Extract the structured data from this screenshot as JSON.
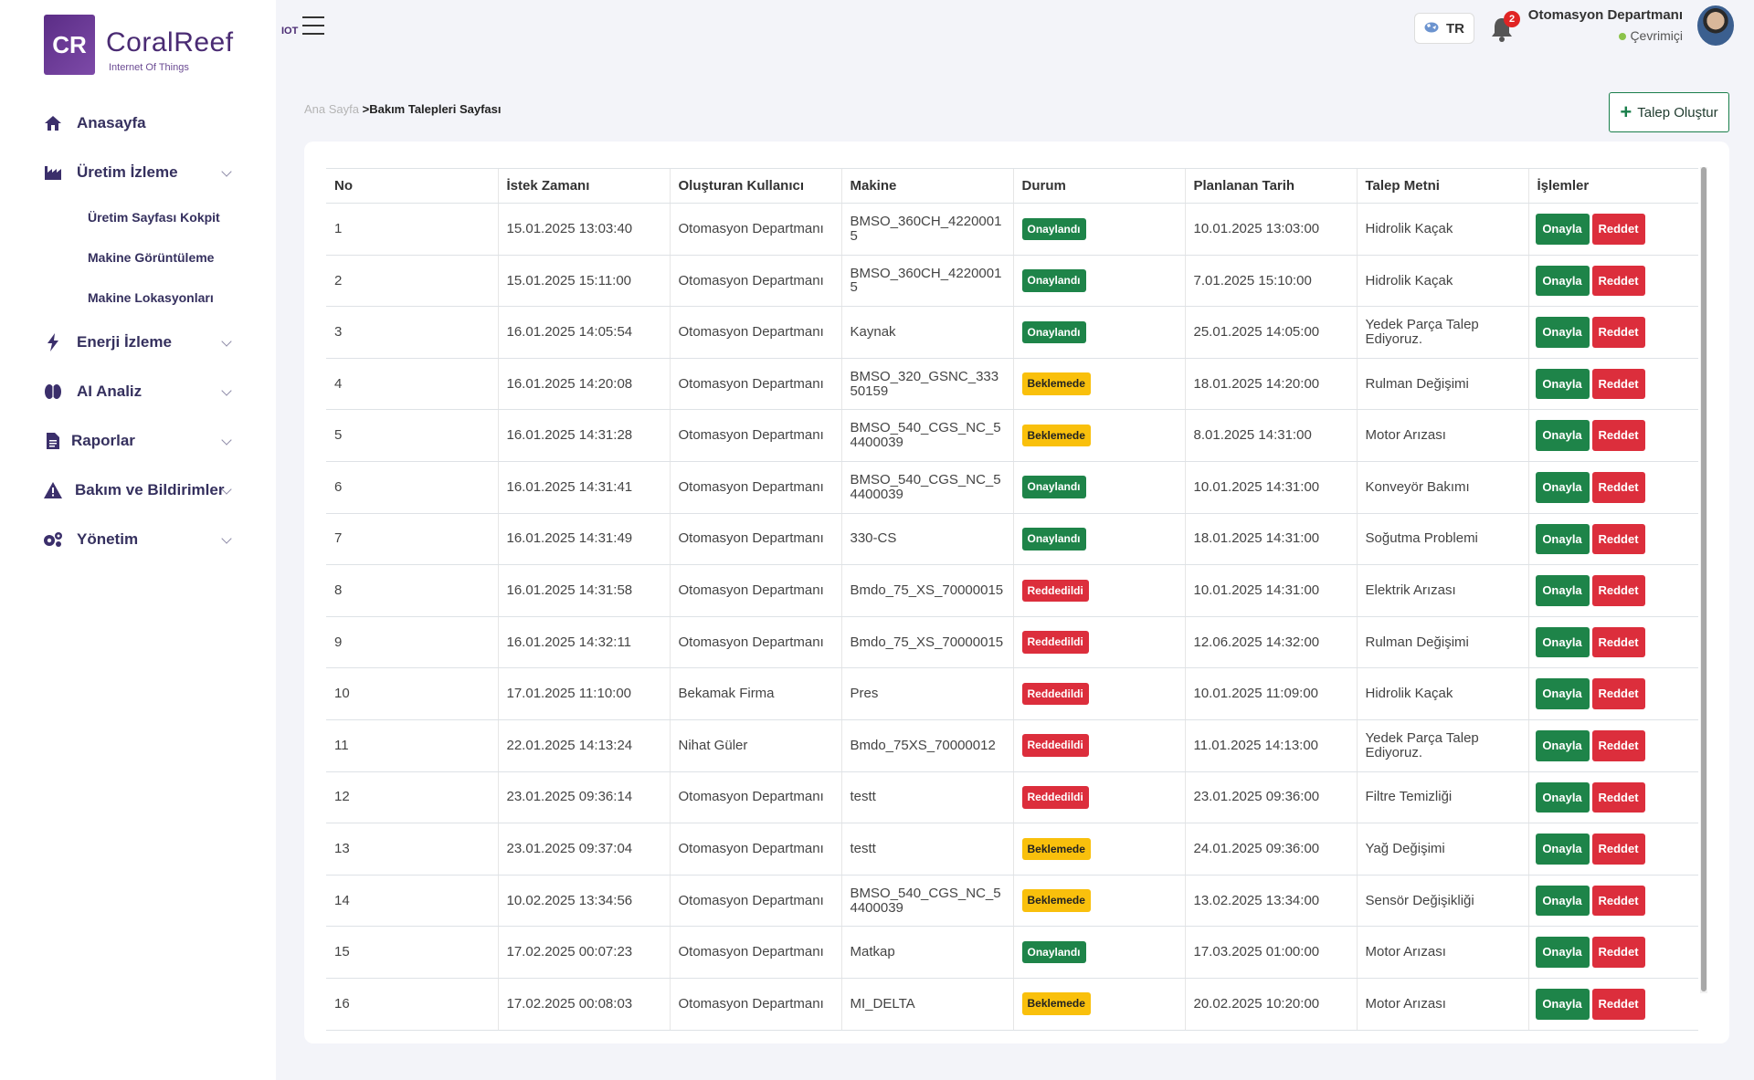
{
  "sidebar": {
    "logo_mark": "CR",
    "logo_name": "CoralReef",
    "logo_tag": "IOT",
    "logo_subtitle": "Internet Of Things",
    "nav": [
      {
        "key": "home",
        "label": "Anasayfa",
        "icon": "home-icon",
        "has_children": false
      },
      {
        "key": "production",
        "label": "Üretim İzleme",
        "icon": "factory-icon",
        "has_children": true,
        "children": [
          "Üretim Sayfası Kokpit",
          "Makine Görüntüleme",
          "Makine Lokasyonları"
        ]
      },
      {
        "key": "energy",
        "label": "Enerji İzleme",
        "icon": "bolt-icon",
        "has_children": true
      },
      {
        "key": "ai",
        "label": "AI Analiz",
        "icon": "brain-icon",
        "has_children": true
      },
      {
        "key": "reports",
        "label": "Raporlar",
        "icon": "document-icon",
        "has_children": true
      },
      {
        "key": "maintenance",
        "label": "Bakım ve Bildirimler",
        "icon": "warning-icon",
        "has_children": true
      },
      {
        "key": "admin",
        "label": "Yönetim",
        "icon": "gears-icon",
        "has_children": true
      }
    ]
  },
  "header": {
    "language": "TR",
    "notification_count": "2",
    "user_name": "Otomasyon Departmanı",
    "user_status": "Çevrimiçi"
  },
  "breadcrumb": {
    "home": "Ana Sayfa",
    "separator": ">",
    "current": "Bakım Talepleri Sayfası"
  },
  "create_button": "Talep Oluştur",
  "table": {
    "columns": [
      "No",
      "İstek Zamanı",
      "Oluşturan Kullanıcı",
      "Makine",
      "Durum",
      "Planlanan Tarih",
      "Talep Metni",
      "İşlemler"
    ],
    "approve_label": "Onayla",
    "reject_label": "Reddet",
    "rows": [
      {
        "no": "1",
        "time": "15.01.2025 13:03:40",
        "user": "Otomasyon Departmanı",
        "machine": "BMSO_360CH_42200015",
        "status": "Onaylandı",
        "status_type": "onay",
        "planned": "10.01.2025 13:03:00",
        "text": "Hidrolik Kaçak"
      },
      {
        "no": "2",
        "time": "15.01.2025 15:11:00",
        "user": "Otomasyon Departmanı",
        "machine": "BMSO_360CH_42200015",
        "status": "Onaylandı",
        "status_type": "onay",
        "planned": "7.01.2025 15:10:00",
        "text": "Hidrolik Kaçak"
      },
      {
        "no": "3",
        "time": "16.01.2025 14:05:54",
        "user": "Otomasyon Departmanı",
        "machine": "Kaynak",
        "status": "Onaylandı",
        "status_type": "onay",
        "planned": "25.01.2025 14:05:00",
        "text": "Yedek Parça Talep Ediyoruz."
      },
      {
        "no": "4",
        "time": "16.01.2025 14:20:08",
        "user": "Otomasyon Departmanı",
        "machine": "BMSO_320_GSNC_33350159",
        "status": "Beklemede",
        "status_type": "bek",
        "planned": "18.01.2025 14:20:00",
        "text": "Rulman Değişimi"
      },
      {
        "no": "5",
        "time": "16.01.2025 14:31:28",
        "user": "Otomasyon Departmanı",
        "machine": "BMSO_540_CGS_NC_54400039",
        "status": "Beklemede",
        "status_type": "bek",
        "planned": "8.01.2025 14:31:00",
        "text": "Motor Arızası"
      },
      {
        "no": "6",
        "time": "16.01.2025 14:31:41",
        "user": "Otomasyon Departmanı",
        "machine": "BMSO_540_CGS_NC_54400039",
        "status": "Onaylandı",
        "status_type": "onay",
        "planned": "10.01.2025 14:31:00",
        "text": "Konveyör Bakımı"
      },
      {
        "no": "7",
        "time": "16.01.2025 14:31:49",
        "user": "Otomasyon Departmanı",
        "machine": "330-CS",
        "status": "Onaylandı",
        "status_type": "onay",
        "planned": "18.01.2025 14:31:00",
        "text": "Soğutma Problemi"
      },
      {
        "no": "8",
        "time": "16.01.2025 14:31:58",
        "user": "Otomasyon Departmanı",
        "machine": "Bmdo_75_XS_70000015",
        "status": "Reddedildi",
        "status_type": "red",
        "planned": "10.01.2025 14:31:00",
        "text": "Elektrik Arızası"
      },
      {
        "no": "9",
        "time": "16.01.2025 14:32:11",
        "user": "Otomasyon Departmanı",
        "machine": "Bmdo_75_XS_70000015",
        "status": "Reddedildi",
        "status_type": "red",
        "planned": "12.06.2025 14:32:00",
        "text": "Rulman Değişimi"
      },
      {
        "no": "10",
        "time": "17.01.2025 11:10:00",
        "user": "Bekamak Firma",
        "machine": "Pres",
        "status": "Reddedildi",
        "status_type": "red",
        "planned": "10.01.2025 11:09:00",
        "text": "Hidrolik Kaçak"
      },
      {
        "no": "11",
        "time": "22.01.2025 14:13:24",
        "user": "Nihat Güler",
        "machine": "Bmdo_75XS_70000012",
        "status": "Reddedildi",
        "status_type": "red",
        "planned": "11.01.2025 14:13:00",
        "text": "Yedek Parça Talep Ediyoruz."
      },
      {
        "no": "12",
        "time": "23.01.2025 09:36:14",
        "user": "Otomasyon Departmanı",
        "machine": "testt",
        "status": "Reddedildi",
        "status_type": "red",
        "planned": "23.01.2025 09:36:00",
        "text": "Filtre Temizliği"
      },
      {
        "no": "13",
        "time": "23.01.2025 09:37:04",
        "user": "Otomasyon Departmanı",
        "machine": "testt",
        "status": "Beklemede",
        "status_type": "bek",
        "planned": "24.01.2025 09:36:00",
        "text": "Yağ Değişimi"
      },
      {
        "no": "14",
        "time": "10.02.2025 13:34:56",
        "user": "Otomasyon Departmanı",
        "machine": "BMSO_540_CGS_NC_54400039",
        "status": "Beklemede",
        "status_type": "bek",
        "planned": "13.02.2025 13:34:00",
        "text": "Sensör Değişikliği"
      },
      {
        "no": "15",
        "time": "17.02.2025 00:07:23",
        "user": "Otomasyon Departmanı",
        "machine": "Matkap",
        "status": "Onaylandı",
        "status_type": "onay",
        "planned": "17.03.2025 01:00:00",
        "text": "Motor Arızası"
      },
      {
        "no": "16",
        "time": "17.02.2025 00:08:03",
        "user": "Otomasyon Departmanı",
        "machine": "MI_DELTA",
        "status": "Beklemede",
        "status_type": "bek",
        "planned": "20.02.2025 10:20:00",
        "text": "Motor Arızası"
      }
    ]
  }
}
